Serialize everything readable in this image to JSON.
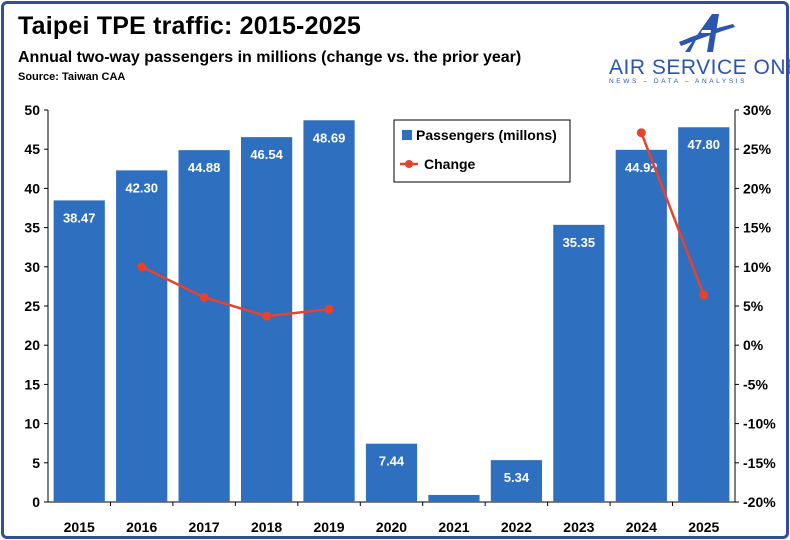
{
  "header": {
    "title": "Taipei TPE traffic: 2015-2025",
    "subtitle": "Annual two-way passengers in millions (change vs. the prior year)",
    "source": "Source: Taiwan CAA"
  },
  "logo": {
    "name": "AIR SERVICE ONE",
    "tagline": "NEWS – DATA – ANALYSIS",
    "icon": "aircraft-a-icon",
    "color": "#2b55b0"
  },
  "chart_data": {
    "type": "bar",
    "categories": [
      "2015",
      "2016",
      "2017",
      "2018",
      "2019",
      "2020",
      "2021",
      "2022",
      "2023",
      "2024",
      "2025"
    ],
    "series": [
      {
        "name": "Passengers (millons)",
        "type": "bar",
        "axis": "left",
        "color": "#2e6fc0",
        "values": [
          38.47,
          42.3,
          44.88,
          46.54,
          48.69,
          7.44,
          0.9,
          5.34,
          35.35,
          44.92,
          47.8
        ],
        "labels": [
          "38.47",
          "42.30",
          "44.88",
          "46.54",
          "48.69",
          "7.44",
          "",
          "5.34",
          "35.35",
          "44.92",
          "47.80"
        ]
      },
      {
        "name": "Change",
        "type": "line",
        "axis": "right",
        "color": "#e8412c",
        "segments": [
          {
            "categories": [
              "2016",
              "2017",
              "2018",
              "2019"
            ],
            "values": [
              10.0,
              6.1,
              3.7,
              4.6
            ]
          },
          {
            "categories": [
              "2024",
              "2025"
            ],
            "values": [
              27.1,
              6.4
            ]
          }
        ]
      }
    ],
    "y_left": {
      "min": 0,
      "max": 50,
      "ticks": [
        0,
        5,
        10,
        15,
        20,
        25,
        30,
        35,
        40,
        45,
        50
      ]
    },
    "y_right": {
      "min": -20,
      "max": 30,
      "ticks": [
        -20,
        -15,
        -10,
        -5,
        0,
        5,
        10,
        15,
        20,
        25,
        30
      ],
      "format": "percent"
    },
    "grid": false,
    "legend_placement": "top-center"
  }
}
